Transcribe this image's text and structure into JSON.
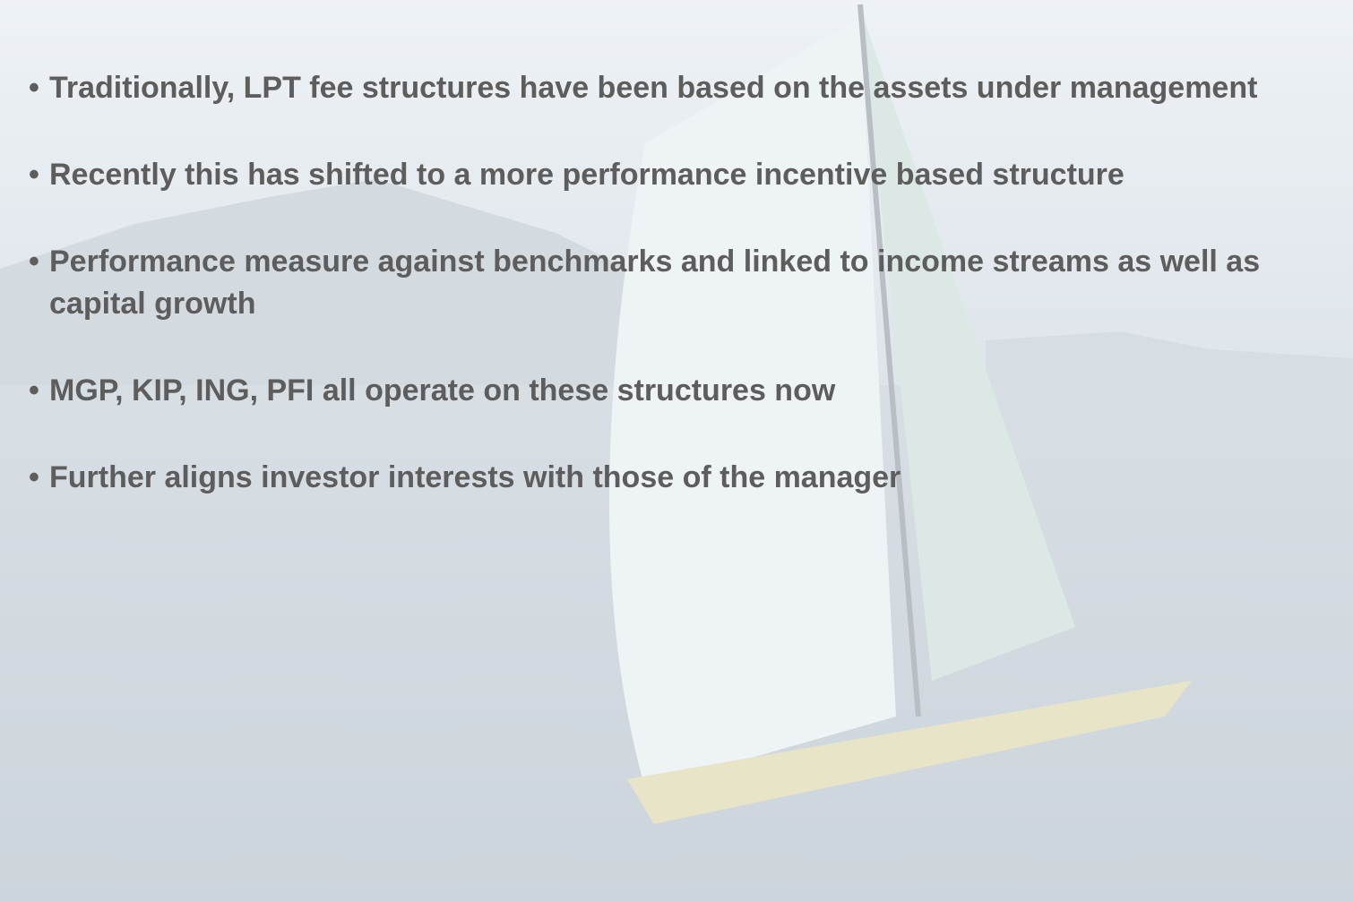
{
  "bullets": [
    "Traditionally, LPT fee structures have been based on the assets under management",
    "Recently this has shifted to a more performance incentive based structure",
    "Performance measure against benchmarks and linked to income streams as well as capital growth",
    "MGP, KIP, ING, PFI all operate on these structures now",
    "Further aligns investor interests with those of the manager"
  ]
}
